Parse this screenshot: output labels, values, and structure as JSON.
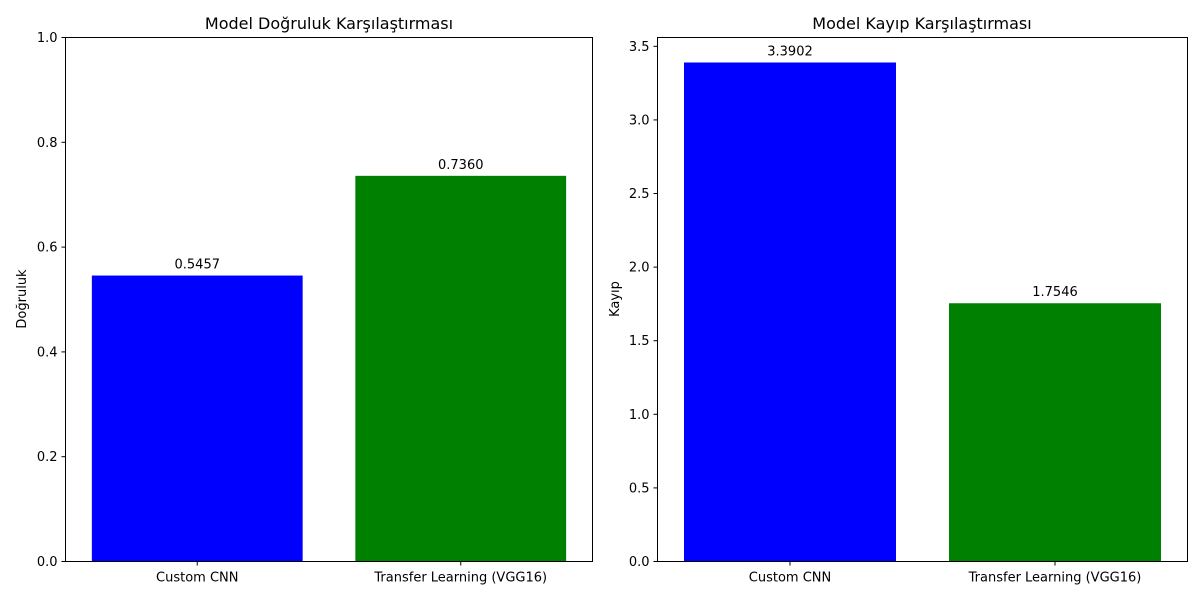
{
  "chart_data": [
    {
      "type": "bar",
      "title": "Model Doğruluk Karşılaştırması",
      "xlabel": "",
      "ylabel": "Doğruluk",
      "categories": [
        "Custom CNN",
        "Transfer Learning (VGG16)"
      ],
      "values": [
        0.5457,
        0.736
      ],
      "value_labels": [
        "0.5457",
        "0.7360"
      ],
      "colors": [
        "#0000ff",
        "#008000"
      ],
      "ylim": [
        0,
        1.0
      ],
      "yticks": [
        0.0,
        0.2,
        0.4,
        0.6,
        0.8,
        1.0
      ],
      "ytick_labels": [
        "0.0",
        "0.2",
        "0.4",
        "0.6",
        "0.8",
        "1.0"
      ],
      "grid": false
    },
    {
      "type": "bar",
      "title": "Model Kayıp Karşılaştırması",
      "xlabel": "",
      "ylabel": "Kayıp",
      "categories": [
        "Custom CNN",
        "Transfer Learning (VGG16)"
      ],
      "values": [
        3.3902,
        1.7546
      ],
      "value_labels": [
        "3.3902",
        "1.7546"
      ],
      "colors": [
        "#0000ff",
        "#008000"
      ],
      "ylim": [
        0,
        3.56
      ],
      "yticks": [
        0.0,
        0.5,
        1.0,
        1.5,
        2.0,
        2.5,
        3.0,
        3.5
      ],
      "ytick_labels": [
        "0.0",
        "0.5",
        "1.0",
        "1.5",
        "2.0",
        "2.5",
        "3.0",
        "3.5"
      ],
      "grid": false
    }
  ]
}
